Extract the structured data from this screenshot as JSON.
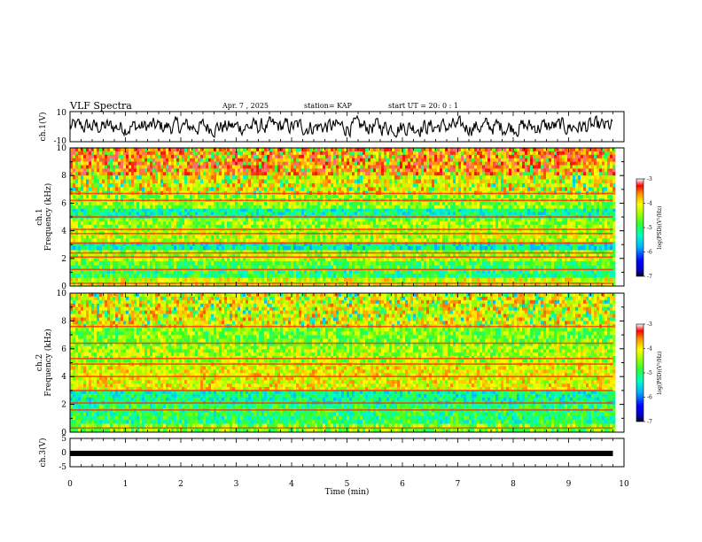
{
  "header": {
    "title": "VLF Spectra",
    "date": "Apr. 7 , 2025",
    "station": "station= KAP",
    "start_ut": "start UT = 20: 0 : 1"
  },
  "chart_data": [
    {
      "type": "line",
      "panel": "waveform-ch1",
      "ylabel": "ch.1(V)",
      "ylim": [
        -10,
        10
      ],
      "yticks": [
        "10",
        "-10"
      ],
      "xlim": [
        0,
        10
      ],
      "x_extent": [
        0,
        9.8
      ],
      "series": [
        {
          "values": "pseudo-random oscillation approx. -6 to +6 V"
        }
      ]
    },
    {
      "type": "heatmap",
      "panel": "spectrogram-ch1",
      "ylabel_line1": "ch.1",
      "ylabel_line2": "Frequency (kHz)",
      "ylim": [
        0,
        10
      ],
      "yticks": [
        "0",
        "2",
        "4",
        "6",
        "8",
        "10"
      ],
      "xlim": [
        0,
        10
      ],
      "x_extent": [
        0,
        9.8
      ],
      "colorbar": {
        "label": "log(PSD)(V²/Hz)",
        "range": [
          -7,
          -3
        ],
        "ticks": [
          "-3",
          "-4",
          "-5",
          "-6",
          "-7"
        ]
      },
      "bands": [
        {
          "from": 8.0,
          "to": 10.0,
          "level": -3.5
        },
        {
          "from": 6.6,
          "to": 8.0,
          "level": -4.0
        },
        {
          "from": 5.6,
          "to": 6.6,
          "level": -4.5
        },
        {
          "from": 4.9,
          "to": 5.6,
          "level": -5.2
        },
        {
          "from": 4.2,
          "to": 4.9,
          "level": -4.5
        },
        {
          "from": 3.2,
          "to": 4.2,
          "level": -4.3
        },
        {
          "from": 2.6,
          "to": 3.2,
          "level": -5.3
        },
        {
          "from": 1.8,
          "to": 2.6,
          "level": -4.4
        },
        {
          "from": 1.2,
          "to": 1.8,
          "level": -4.8
        },
        {
          "from": 0.6,
          "to": 1.2,
          "level": -5.0
        },
        {
          "from": 0.0,
          "to": 0.6,
          "level": -4.2
        }
      ],
      "lines": [
        6.7,
        6.2,
        5.0,
        4.1,
        3.8,
        3.1,
        2.4,
        2.1,
        1.2,
        0.2
      ]
    },
    {
      "type": "heatmap",
      "panel": "spectrogram-ch2",
      "ylabel_line1": "ch.2",
      "ylabel_line2": "Frequency (kHz)",
      "ylim": [
        0,
        10
      ],
      "yticks": [
        "0",
        "2",
        "4",
        "6",
        "8",
        "10"
      ],
      "xlim": [
        0,
        10
      ],
      "x_extent": [
        0,
        9.8
      ],
      "colorbar": {
        "label": "log(PSD)(V²/Hz)",
        "range": [
          -7,
          -3
        ],
        "ticks": [
          "-3",
          "-4",
          "-5",
          "-6",
          "-7"
        ]
      },
      "bands": [
        {
          "from": 7.5,
          "to": 10.0,
          "level": -4.0
        },
        {
          "from": 6.2,
          "to": 7.5,
          "level": -4.6
        },
        {
          "from": 5.0,
          "to": 6.2,
          "level": -4.4
        },
        {
          "from": 3.0,
          "to": 5.0,
          "level": -4.1
        },
        {
          "from": 2.0,
          "to": 3.0,
          "level": -5.2
        },
        {
          "from": 0.6,
          "to": 2.0,
          "level": -5.0
        },
        {
          "from": 0.0,
          "to": 0.6,
          "level": -4.6
        }
      ],
      "lines": [
        7.6,
        6.4,
        5.3,
        4.9,
        4.0,
        3.0,
        2.1,
        1.6,
        0.3
      ]
    },
    {
      "type": "line",
      "panel": "waveform-ch3",
      "ylabel": "ch.3(V)",
      "ylim": [
        -5,
        5
      ],
      "yticks": [
        "5",
        "0",
        "-5"
      ],
      "xlim": [
        0,
        10
      ],
      "x_extent": [
        0,
        9.8
      ],
      "xlabel": "Time (min)",
      "xticks": [
        "0",
        "1",
        "2",
        "3",
        "4",
        "5",
        "6",
        "7",
        "8",
        "9",
        "10"
      ],
      "series": [
        {
          "values": "constant band approx. -0.3 V"
        }
      ]
    }
  ]
}
